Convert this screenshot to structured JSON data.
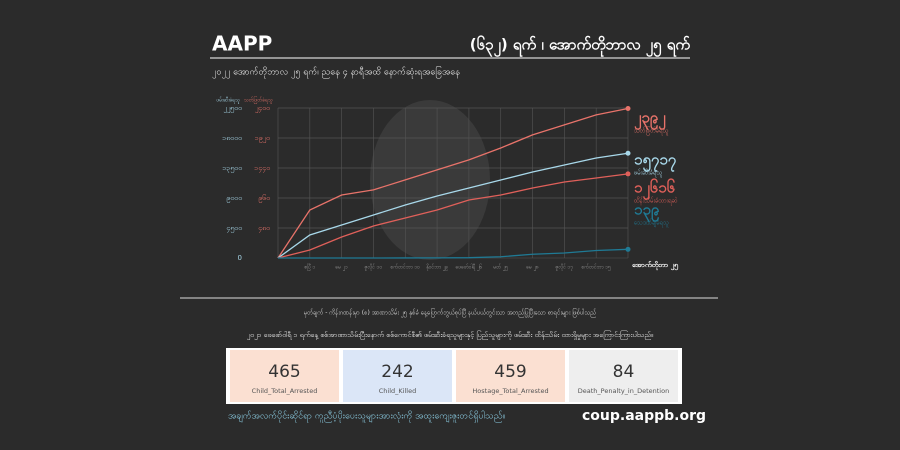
{
  "header": {
    "brand": "AAPP",
    "title": "(၆၃၂) ရက် ၊ အောက်တိုဘာလ ၂၅ ရက်",
    "subtitle": "၂၀၂၂ အောက်တိုဘာလ ၂၅ ရက်၊ ညနေ ၄ နာရီအထိ နောက်ဆုံးရအခြေအနေ"
  },
  "chart_data": {
    "type": "line",
    "y_label": "ဖမ်းဆီးခံရသူ",
    "y2_label": "သတ်ဖြတ်ခံရသူ",
    "x_label": "အောက်တိုဘာ ၂၅",
    "categories": [
      null,
      "ဧပြီ ၁",
      "မေ ၂၁",
      "ဇူလိုင် ၁၀",
      "စက်တင်ဘာ ၁၀",
      "နိုဝင်ဘာ ၂၉",
      "ဖေဖော်ဝါရီ ၂၆",
      "မတ် ၂၅",
      "မေ ၂၈",
      "ဇူလိုင် ၁၇",
      "စက်တင်ဘာ ၁၅",
      null
    ],
    "ylim": [
      0,
      22500
    ],
    "yticks": [
      {
        "value": 0,
        "label": "0"
      },
      {
        "value": 4500,
        "label": "၄၅၀၀"
      },
      {
        "value": 9000,
        "label": "၉၀၀၀"
      },
      {
        "value": 13500,
        "label": "၁၃၅၀၀"
      },
      {
        "value": 18000,
        "label": "၁၈၀၀၀"
      },
      {
        "value": 22500,
        "label": "၂၂၅၀၀"
      }
    ],
    "y2lim": [
      0,
      2400
    ],
    "y2ticks": [
      {
        "value": 480,
        "label": "၄၈၀"
      },
      {
        "value": 960,
        "label": "၉၆၀"
      },
      {
        "value": 1440,
        "label": "၁၄၄၀"
      },
      {
        "value": 1920,
        "label": "၁၉၂၀"
      },
      {
        "value": 2400,
        "label": "၂၄၀၀"
      }
    ],
    "grid": true,
    "series": [
      {
        "name": "သတ်ဖြတ်ခံရသူ",
        "color": "#e8736a",
        "axis": "y2",
        "values": [
          0,
          768,
          1008,
          1090,
          1250,
          1410,
          1570,
          1760,
          1970,
          2130,
          2290,
          2392
        ],
        "value_label": "၂၃၉၂"
      },
      {
        "name": "ဖမ်းဆီးခံရသူ",
        "color": "#a8d8ea",
        "axis": "y",
        "values": [
          0,
          3450,
          4950,
          6450,
          7950,
          9300,
          10500,
          11700,
          12900,
          13950,
          15000,
          15717
        ],
        "value_label": "၁၅၇၁၇"
      },
      {
        "name": "ထိန်းသိမ်းခံထားရဆဲ",
        "color": "#e0605a",
        "axis": "y",
        "values": [
          0,
          1200,
          3150,
          4800,
          6000,
          7200,
          8700,
          9450,
          10500,
          11400,
          12000,
          12616
        ],
        "value_label": "၁၂၆၁၆"
      },
      {
        "name": "သေဒဏ်ချခံရသူ",
        "color": "#1f7a95",
        "axis": "y2",
        "values": [
          0,
          0,
          0,
          0,
          1,
          2,
          5,
          20,
          60,
          80,
          120,
          139
        ],
        "value_label": "၁၃၉"
      }
    ]
  },
  "notes": [
    "မှတ်ချက် - ကိန်းဂဏန်းမှာ (စ) အာဏာသိမ်း ၂၅ နှစ်ခံ နေ့ပြောက်ဘွယ်စုပ်ပြီ နယ်ပယ်တွင်းသာ အတည်ပြုပြီးသော စာရင်းများ ဖြစ်ပါသည်",
    "၂၀၂၁ ဖေဖော်ဝါရီ ၁ ရက်နေ့ စစ်အာဏာသိမ်းပြီးနောက် စစ်ကောင်စီ၏ ဖမ်းဆီးခံရသူများနှင့် ပြည်သူများကို ဖမ်းဆီး ထိန်းသိမ်း ထားရှိမှုများ အကြောင်းကြားပါသည်။"
  ],
  "cards": [
    {
      "value": "465",
      "label": "Child_Total_Arrested"
    },
    {
      "value": "242",
      "label": "Child_Killed"
    },
    {
      "value": "459",
      "label": "Hostage_Total_Arrested"
    },
    {
      "value": "84",
      "label": "Death_Penalty_in_Detention"
    }
  ],
  "footer": {
    "quote": "အချက်အလက်ပိုင်းဆိုင်ရာ ကူညီပံ့ပိုးပေးသူများအားလုံးကို အထူးကျေးဇူးတင်ရှိပါသည်။",
    "url": "coup.aappb.org"
  }
}
